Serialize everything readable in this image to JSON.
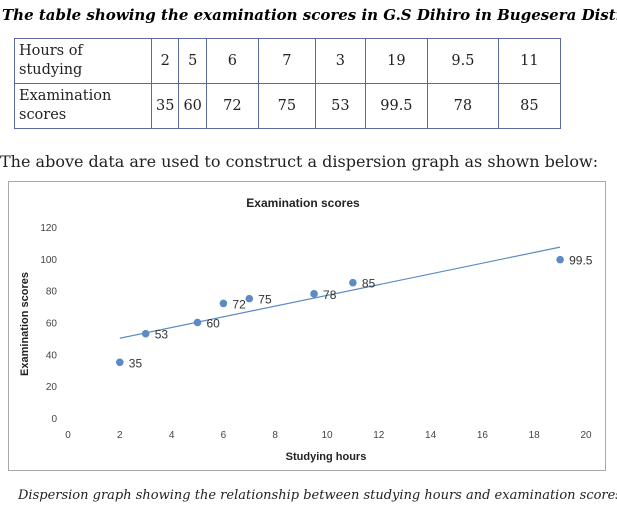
{
  "title": "The table showing the examination scores in G.S Dihiro in Bugesera District",
  "table": {
    "row1_label": "Hours of studying",
    "row2_label": "Examination scores",
    "hours": [
      "2",
      "5",
      "6",
      "7",
      "3",
      "19",
      "9.5",
      "11"
    ],
    "scores": [
      "35",
      "60",
      "72",
      "75",
      "53",
      "99.5",
      "78",
      "85"
    ]
  },
  "intro_text": "The above data are used to construct a dispersion graph as shown below:",
  "caption": "Dispersion graph showing the relationship between studying hours and examination scores",
  "chart_data": {
    "type": "scatter",
    "title": "Examination scores",
    "xlabel": "Studying hours",
    "ylabel": "Examination scores",
    "xlim": [
      0,
      20
    ],
    "ylim": [
      0,
      120
    ],
    "x_ticks": [
      "0",
      "2",
      "4",
      "6",
      "8",
      "10",
      "12",
      "14",
      "16",
      "18",
      "20"
    ],
    "y_ticks": [
      "0",
      "20",
      "40",
      "60",
      "80",
      "100",
      "120"
    ],
    "grid": false,
    "legend": "none",
    "point_color": "#5b8ac4",
    "trendline_color": "#5b8ac4",
    "points": [
      {
        "x": 2,
        "y": 35,
        "label": "35"
      },
      {
        "x": 5,
        "y": 60,
        "label": "60"
      },
      {
        "x": 6,
        "y": 72,
        "label": "72"
      },
      {
        "x": 7,
        "y": 75,
        "label": "75"
      },
      {
        "x": 3,
        "y": 53,
        "label": "53"
      },
      {
        "x": 19,
        "y": 99.5,
        "label": "99.5"
      },
      {
        "x": 9.5,
        "y": 78,
        "label": "78"
      },
      {
        "x": 11,
        "y": 85,
        "label": "85"
      }
    ],
    "trendline": {
      "type": "linear"
    }
  }
}
